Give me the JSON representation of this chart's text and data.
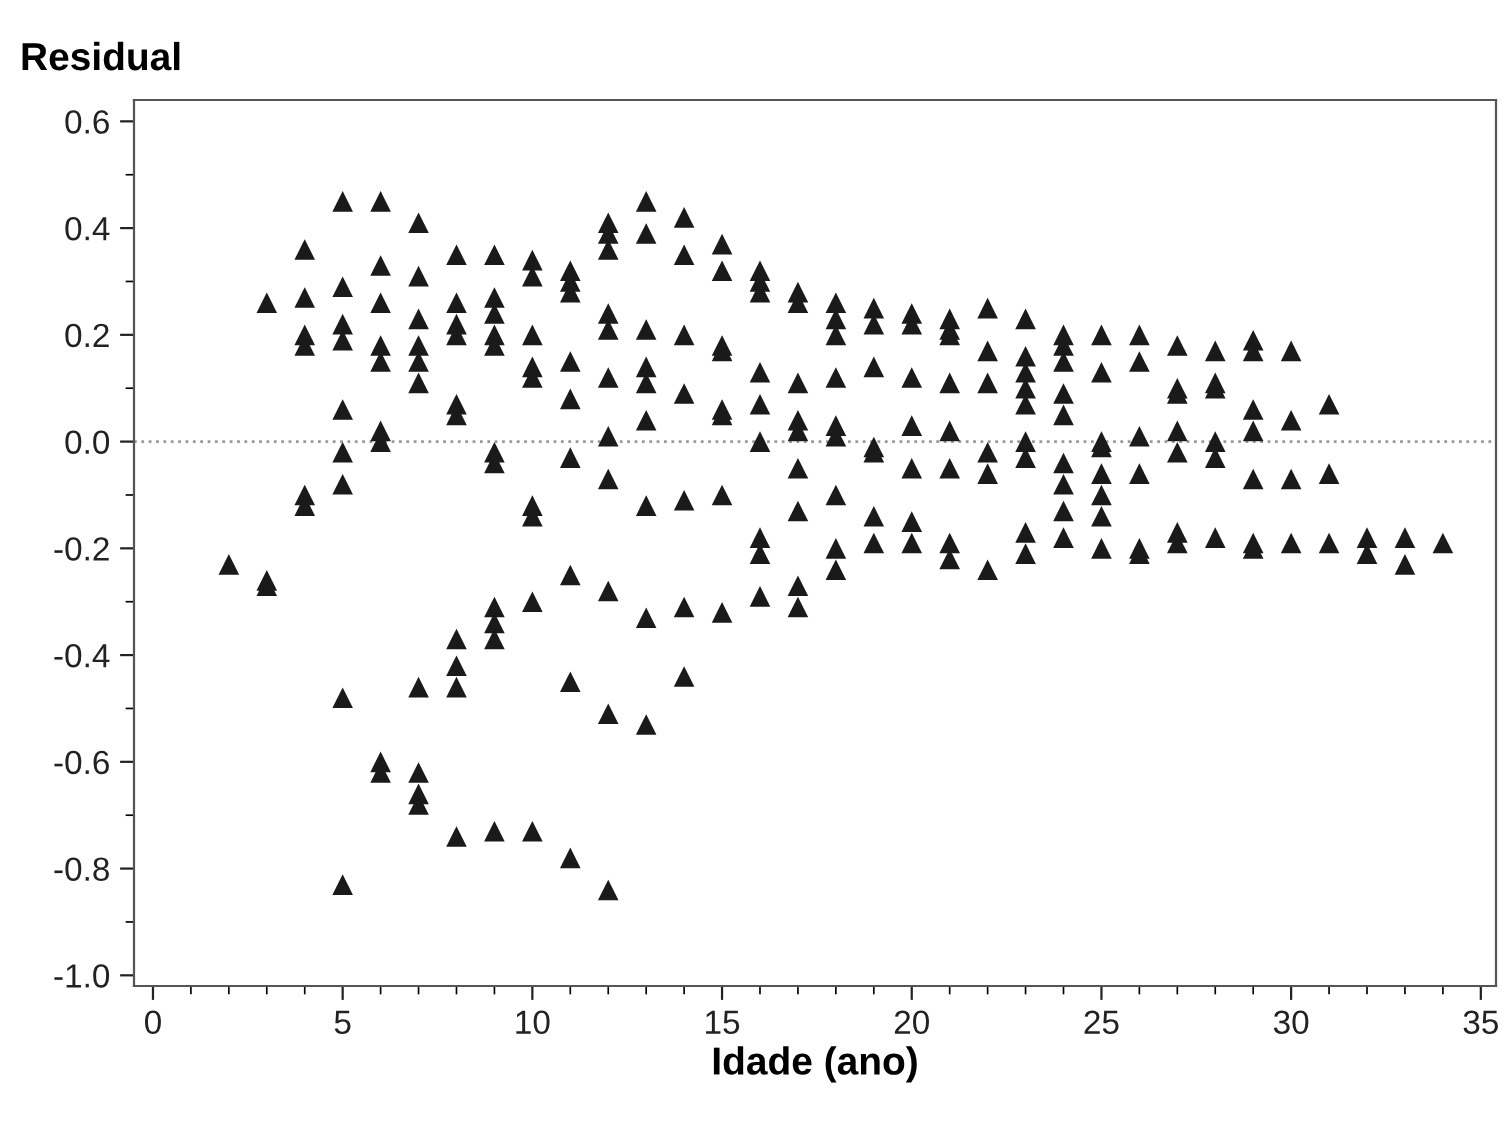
{
  "chart_data": {
    "type": "scatter",
    "xlabel": "Idade (ano)",
    "ylabel": "Residual",
    "xlim": [
      -0.5,
      35.4
    ],
    "ylim": [
      -1.02,
      0.64
    ],
    "xticks": [
      0,
      5,
      10,
      15,
      20,
      25,
      30,
      35,
      {
        "value": 1,
        "label": null
      },
      {
        "value": 2,
        "label": null
      },
      {
        "value": 3,
        "label": null
      },
      {
        "value": 4,
        "label": null
      },
      {
        "value": 6,
        "label": null
      },
      {
        "value": 7,
        "label": null
      },
      {
        "value": 8,
        "label": null
      },
      {
        "value": 9,
        "label": null
      },
      {
        "value": 11,
        "label": null
      },
      {
        "value": 12,
        "label": null
      },
      {
        "value": 13,
        "label": null
      },
      {
        "value": 14,
        "label": null
      },
      {
        "value": 16,
        "label": null
      },
      {
        "value": 17,
        "label": null
      },
      {
        "value": 18,
        "label": null
      },
      {
        "value": 19,
        "label": null
      },
      {
        "value": 21,
        "label": null
      },
      {
        "value": 22,
        "label": null
      },
      {
        "value": 23,
        "label": null
      },
      {
        "value": 24,
        "label": null
      },
      {
        "value": 26,
        "label": null
      },
      {
        "value": 27,
        "label": null
      },
      {
        "value": 28,
        "label": null
      },
      {
        "value": 29,
        "label": null
      },
      {
        "value": 31,
        "label": null
      },
      {
        "value": 32,
        "label": null
      },
      {
        "value": 33,
        "label": null
      },
      {
        "value": 34,
        "label": null
      }
    ],
    "yticks": [
      {
        "value": 0.6,
        "label": "0.6"
      },
      {
        "value": 0.4,
        "label": "0.4"
      },
      {
        "value": 0.2,
        "label": "0.2"
      },
      {
        "value": 0.0,
        "label": "0.0"
      },
      {
        "value": -0.2,
        "label": "-0.2"
      },
      {
        "value": -0.4,
        "label": "-0.4"
      },
      {
        "value": -0.6,
        "label": "-0.6"
      },
      {
        "value": -0.8,
        "label": "-0.8"
      },
      {
        "value": -1.0,
        "label": "-1.0"
      },
      {
        "value": 0.5,
        "label": null
      },
      {
        "value": 0.3,
        "label": null
      },
      {
        "value": 0.1,
        "label": null
      },
      {
        "value": -0.1,
        "label": null
      },
      {
        "value": -0.3,
        "label": null
      },
      {
        "value": -0.5,
        "label": null
      },
      {
        "value": -0.7,
        "label": null
      },
      {
        "value": -0.9,
        "label": null
      }
    ],
    "marker": "triangle",
    "grid": false,
    "legend": false,
    "ref_lines": [
      {
        "axis": "y",
        "value": 0,
        "label": null,
        "color": "#999999",
        "line_style": "dotted"
      }
    ],
    "series": [
      {
        "color": "#1a1a1a",
        "x": [
          2,
          3,
          3,
          3,
          4,
          4,
          4,
          4,
          4,
          4,
          5,
          5,
          5,
          5,
          5,
          5,
          5,
          5,
          5,
          6,
          6,
          6,
          6,
          6,
          6,
          6,
          6,
          6,
          7,
          7,
          7,
          7,
          7,
          7,
          7,
          7,
          7,
          7,
          8,
          8,
          8,
          8,
          8,
          8,
          8,
          8,
          8,
          8,
          9,
          9,
          9,
          9,
          9,
          9,
          9,
          9,
          9,
          9,
          9,
          10,
          10,
          10,
          10,
          10,
          10,
          10,
          10,
          10,
          11,
          11,
          11,
          11,
          11,
          11,
          11,
          11,
          11,
          12,
          12,
          12,
          12,
          12,
          12,
          12,
          12,
          12,
          12,
          12,
          13,
          13,
          13,
          13,
          13,
          13,
          13,
          13,
          13,
          14,
          14,
          14,
          14,
          14,
          14,
          14,
          15,
          15,
          15,
          15,
          15,
          15,
          15,
          15,
          16,
          16,
          16,
          16,
          16,
          16,
          16,
          16,
          16,
          17,
          17,
          17,
          17,
          17,
          17,
          17,
          17,
          17,
          18,
          18,
          18,
          18,
          18,
          18,
          18,
          18,
          18,
          19,
          19,
          19,
          19,
          19,
          19,
          19,
          20,
          20,
          20,
          20,
          20,
          20,
          20,
          21,
          21,
          21,
          21,
          21,
          21,
          21,
          21,
          22,
          22,
          22,
          22,
          22,
          22,
          23,
          23,
          23,
          23,
          23,
          23,
          23,
          23,
          23,
          24,
          24,
          24,
          24,
          24,
          24,
          24,
          24,
          24,
          25,
          25,
          25,
          25,
          25,
          25,
          25,
          25,
          26,
          26,
          26,
          26,
          26,
          26,
          27,
          27,
          27,
          27,
          27,
          27,
          27,
          28,
          28,
          28,
          28,
          28,
          28,
          29,
          29,
          29,
          29,
          29,
          29,
          29,
          30,
          30,
          30,
          30,
          31,
          31,
          31,
          32,
          32,
          33,
          33,
          34
        ],
        "values": [
          -0.23,
          0.26,
          -0.26,
          -0.27,
          0.36,
          0.27,
          0.2,
          0.18,
          -0.1,
          -0.12,
          0.45,
          0.29,
          0.22,
          0.19,
          0.06,
          -0.02,
          -0.08,
          -0.48,
          -0.83,
          0.45,
          0.33,
          0.26,
          0.18,
          0.15,
          0.02,
          0.0,
          -0.6,
          -0.62,
          0.41,
          0.31,
          0.23,
          0.18,
          0.15,
          0.11,
          -0.46,
          -0.62,
          -0.66,
          -0.68,
          0.35,
          0.26,
          0.22,
          0.2,
          0.07,
          0.05,
          -0.37,
          -0.42,
          -0.46,
          -0.74,
          0.35,
          0.27,
          0.24,
          0.2,
          0.18,
          -0.02,
          -0.04,
          -0.31,
          -0.34,
          -0.37,
          -0.73,
          0.34,
          0.31,
          0.2,
          0.14,
          0.12,
          -0.12,
          -0.14,
          -0.3,
          -0.73,
          0.32,
          0.3,
          0.28,
          0.15,
          0.08,
          -0.03,
          -0.25,
          -0.45,
          -0.78,
          0.41,
          0.39,
          0.36,
          0.24,
          0.21,
          0.12,
          0.01,
          -0.07,
          -0.28,
          -0.51,
          -0.84,
          0.45,
          0.39,
          0.21,
          0.14,
          0.11,
          0.04,
          -0.12,
          -0.33,
          -0.53,
          0.42,
          0.35,
          0.2,
          0.09,
          -0.11,
          -0.31,
          -0.44,
          0.37,
          0.32,
          0.18,
          0.17,
          0.06,
          0.05,
          -0.1,
          -0.32,
          0.32,
          0.3,
          0.28,
          0.13,
          0.07,
          0.0,
          -0.18,
          -0.21,
          -0.29,
          0.28,
          0.26,
          0.11,
          0.04,
          0.02,
          -0.05,
          -0.13,
          -0.27,
          -0.31,
          0.26,
          0.23,
          0.2,
          0.12,
          0.03,
          0.01,
          -0.1,
          -0.2,
          -0.24,
          0.25,
          0.22,
          0.14,
          -0.01,
          -0.02,
          -0.14,
          -0.19,
          0.24,
          0.22,
          0.12,
          0.03,
          -0.05,
          -0.15,
          -0.19,
          0.23,
          0.21,
          0.2,
          0.11,
          0.02,
          -0.05,
          -0.19,
          -0.22,
          0.25,
          0.17,
          0.11,
          -0.02,
          -0.06,
          -0.24,
          0.23,
          0.16,
          0.13,
          0.1,
          0.07,
          0.0,
          -0.03,
          -0.17,
          -0.21,
          0.2,
          0.18,
          0.15,
          0.09,
          0.05,
          -0.04,
          -0.08,
          -0.13,
          -0.18,
          0.2,
          0.13,
          0.0,
          -0.01,
          -0.06,
          -0.1,
          -0.14,
          -0.2,
          0.2,
          0.15,
          0.01,
          -0.06,
          -0.2,
          -0.21,
          0.18,
          0.1,
          0.09,
          0.02,
          -0.02,
          -0.17,
          -0.19,
          0.17,
          0.11,
          0.1,
          0.0,
          -0.03,
          -0.18,
          0.19,
          0.17,
          0.06,
          0.02,
          -0.07,
          -0.19,
          -0.2,
          0.17,
          0.04,
          -0.07,
          -0.19,
          0.07,
          -0.06,
          -0.19,
          -0.18,
          -0.21,
          -0.18,
          -0.23,
          -0.19
        ]
      }
    ]
  }
}
